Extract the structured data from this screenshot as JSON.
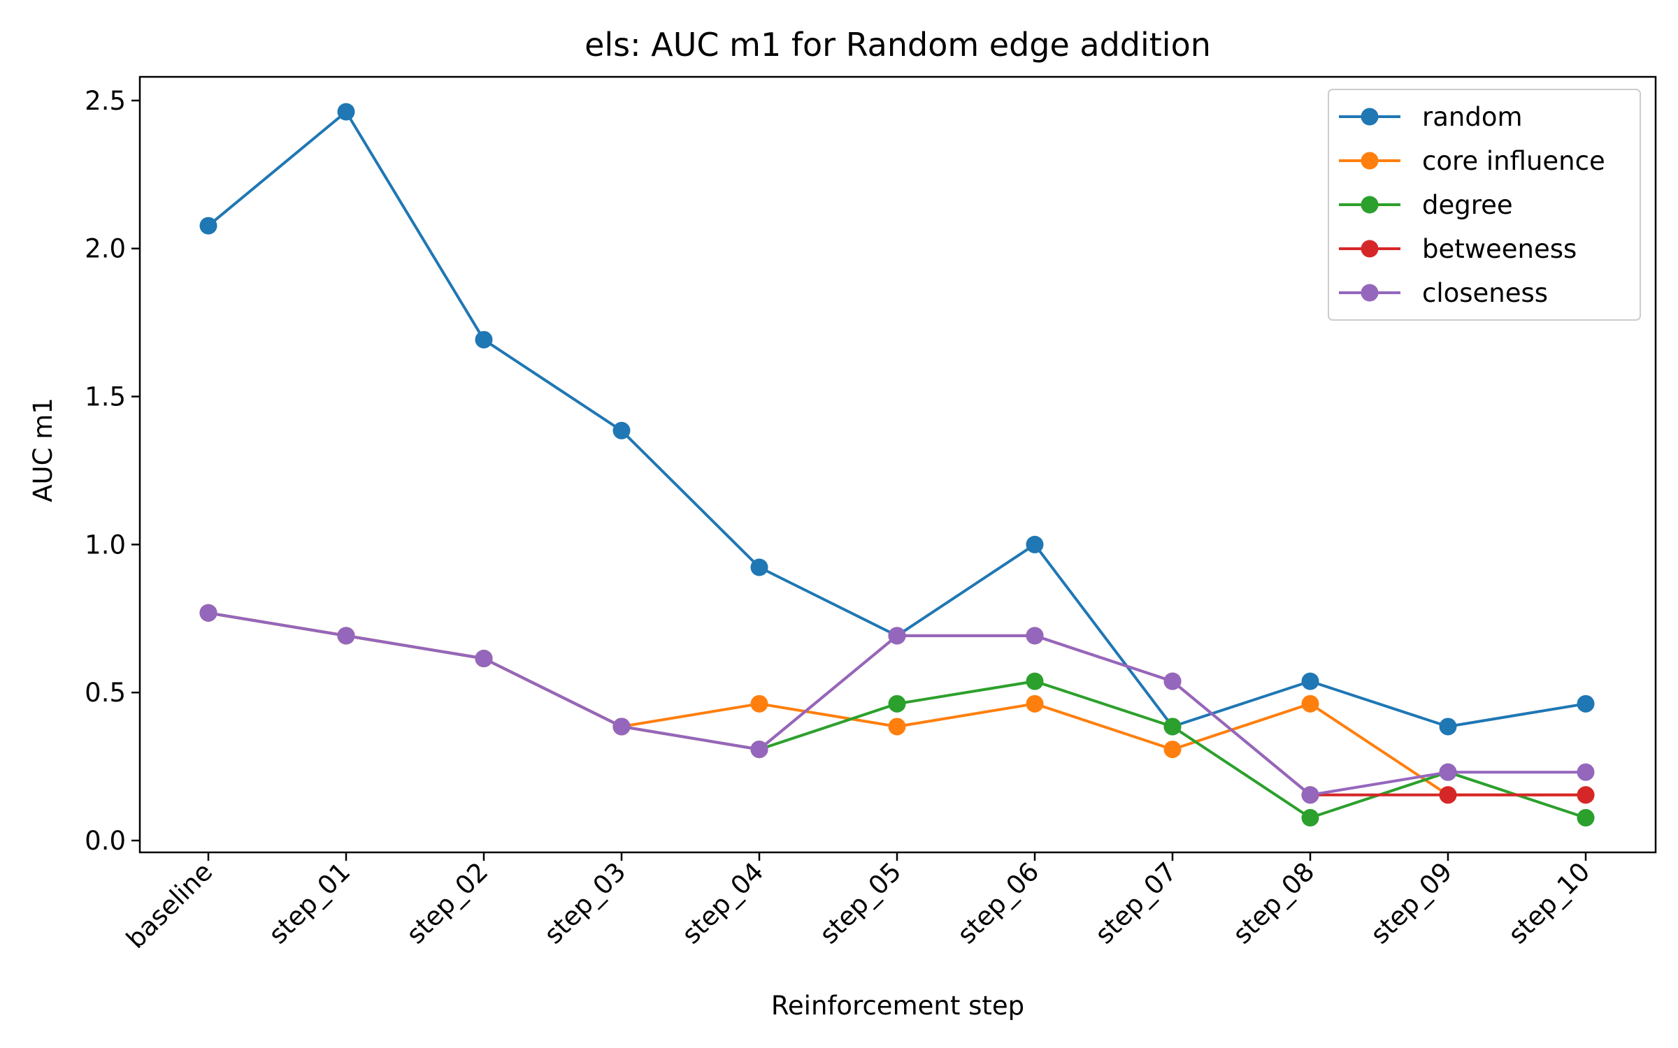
{
  "chart_data": {
    "type": "line",
    "title": "els: AUC m1 for Random edge addition",
    "xlabel": "Reinforcement step",
    "ylabel": "AUC m1",
    "categories": [
      "baseline",
      "step_01",
      "step_02",
      "step_03",
      "step_04",
      "step_05",
      "step_06",
      "step_07",
      "step_08",
      "step_09",
      "step_10"
    ],
    "ylim": [
      -0.04,
      2.58
    ],
    "yticks": [
      0.0,
      0.5,
      1.0,
      1.5,
      2.0,
      2.5
    ],
    "ytick_labels": [
      "0.0",
      "0.5",
      "1.0",
      "1.5",
      "2.0",
      "2.5"
    ],
    "grid": false,
    "legend_position": "top-right",
    "series": [
      {
        "name": "random",
        "color": "#1f77b4",
        "values": [
          2.077,
          2.462,
          1.692,
          1.385,
          0.923,
          0.692,
          1.0,
          0.385,
          0.538,
          0.385,
          0.462
        ]
      },
      {
        "name": "core influence",
        "color": "#ff7f0e",
        "values": [
          0.769,
          0.692,
          0.615,
          0.385,
          0.462,
          0.385,
          0.462,
          0.308,
          0.462,
          0.154,
          0.154
        ]
      },
      {
        "name": "degree",
        "color": "#2ca02c",
        "values": [
          0.769,
          0.692,
          0.615,
          0.385,
          0.308,
          0.462,
          0.538,
          0.385,
          0.077,
          0.231,
          0.077
        ]
      },
      {
        "name": "betweeness",
        "color": "#d62728",
        "values": [
          0.769,
          0.692,
          0.615,
          0.385,
          0.308,
          0.692,
          0.692,
          0.538,
          0.154,
          0.154,
          0.154
        ]
      },
      {
        "name": "closeness",
        "color": "#9467bd",
        "values": [
          0.769,
          0.692,
          0.615,
          0.385,
          0.308,
          0.692,
          0.692,
          0.538,
          0.154,
          0.231,
          0.231
        ]
      }
    ]
  }
}
